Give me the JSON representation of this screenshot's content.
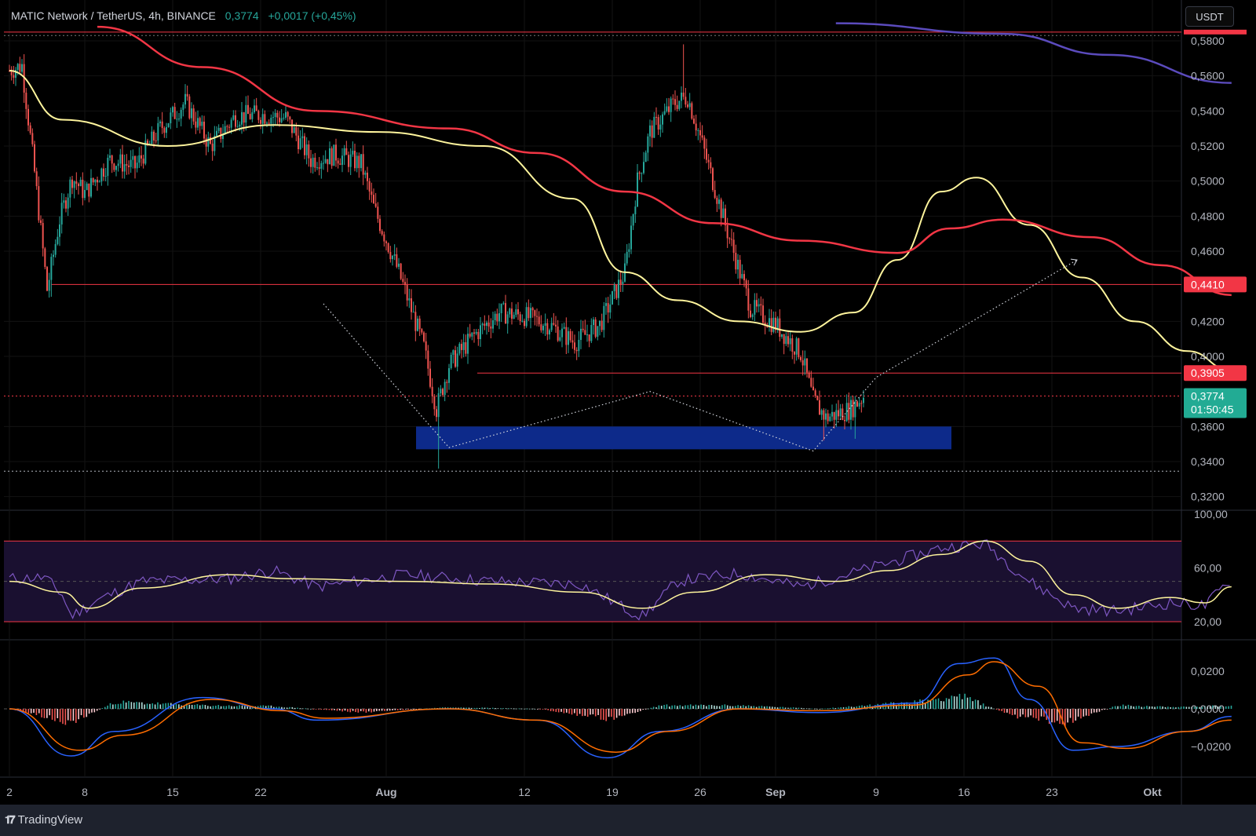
{
  "header": {
    "symbol": "MATIC Network / TetherUS, 4h, BINANCE",
    "price": "0,3774",
    "change": "+0,0017 (+0,45%)"
  },
  "currency_button": "USDT",
  "price_labels": [
    "0,5800",
    "0,5600",
    "0,5400",
    "0,5200",
    "0,5000",
    "0,4800",
    "0,4600",
    "0,4200",
    "0,4000",
    "0,3600",
    "0,3400",
    "0,3200"
  ],
  "level_tags": [
    {
      "text": "0,4410",
      "color": "#f23645"
    },
    {
      "text": "0,3905",
      "color": "#f23645"
    }
  ],
  "current_tag": {
    "price": "0,3774",
    "countdown": "01:50:45",
    "color": "#22ab94"
  },
  "rsi_labels": [
    "100,00",
    "60,00",
    "20,00"
  ],
  "macd_labels": [
    "0,0200",
    "0,0000",
    "−0,0200"
  ],
  "time_labels": [
    "2",
    "8",
    "15",
    "22",
    "Aug",
    "12",
    "19",
    "26",
    "Sep",
    "9",
    "16",
    "23",
    "Okt"
  ],
  "branding": "TradingView",
  "chart_data": [
    {
      "type": "candlestick",
      "title": "MATIC Network / TetherUS, 4h, BINANCE",
      "x_axis": "date (2024-07-02 to 2024-10-01)",
      "ylim": [
        0.312,
        0.588
      ],
      "key_points": [
        {
          "date": "07-02",
          "close": 0.563
        },
        {
          "date": "07-03",
          "close": 0.566
        },
        {
          "date": "07-04",
          "close": 0.505
        },
        {
          "date": "07-05",
          "close": 0.438
        },
        {
          "date": "07-06",
          "close": 0.478
        },
        {
          "date": "07-07",
          "close": 0.502
        },
        {
          "date": "07-08",
          "close": 0.493
        },
        {
          "date": "07-10",
          "close": 0.512
        },
        {
          "date": "07-12",
          "close": 0.508
        },
        {
          "date": "07-14",
          "close": 0.53
        },
        {
          "date": "07-16",
          "close": 0.545
        },
        {
          "date": "07-18",
          "close": 0.52
        },
        {
          "date": "07-20",
          "close": 0.537
        },
        {
          "date": "07-22",
          "close": 0.538
        },
        {
          "date": "07-24",
          "close": 0.536
        },
        {
          "date": "07-26",
          "close": 0.512
        },
        {
          "date": "07-28",
          "close": 0.515
        },
        {
          "date": "07-30",
          "close": 0.51
        },
        {
          "date": "07-31",
          "close": 0.485
        },
        {
          "date": "08-02",
          "close": 0.448
        },
        {
          "date": "08-04",
          "close": 0.405
        },
        {
          "date": "08-05",
          "close": 0.37
        },
        {
          "date": "08-06",
          "close": 0.395
        },
        {
          "date": "08-08",
          "close": 0.412
        },
        {
          "date": "08-10",
          "close": 0.425
        },
        {
          "date": "08-12",
          "close": 0.423
        },
        {
          "date": "08-14",
          "close": 0.418
        },
        {
          "date": "08-16",
          "close": 0.408
        },
        {
          "date": "08-18",
          "close": 0.418
        },
        {
          "date": "08-20",
          "close": 0.448
        },
        {
          "date": "08-21",
          "close": 0.5
        },
        {
          "date": "08-22",
          "close": 0.528
        },
        {
          "date": "08-24",
          "close": 0.545
        },
        {
          "date": "08-25",
          "close": 0.548
        },
        {
          "date": "08-26",
          "close": 0.525
        },
        {
          "date": "08-28",
          "close": 0.475
        },
        {
          "date": "08-30",
          "close": 0.428
        },
        {
          "date": "09-01",
          "close": 0.418
        },
        {
          "date": "09-03",
          "close": 0.402
        },
        {
          "date": "09-04",
          "close": 0.375
        },
        {
          "date": "09-05",
          "close": 0.365
        },
        {
          "date": "09-07",
          "close": 0.37
        },
        {
          "date": "09-08",
          "close": 0.3774
        }
      ],
      "moving_averages": [
        {
          "color": "#fff59d",
          "key_points": [
            [
              0,
              0.563
            ],
            [
              0.6,
              0.535
            ],
            [
              1.8,
              0.52
            ],
            [
              3.0,
              0.532
            ],
            [
              4.2,
              0.528
            ],
            [
              5.4,
              0.52
            ],
            [
              6.4,
              0.49
            ],
            [
              7.0,
              0.448
            ],
            [
              7.6,
              0.432
            ],
            [
              8.3,
              0.42
            ],
            [
              9.0,
              0.414
            ],
            [
              9.6,
              0.425
            ],
            [
              10.1,
              0.455
            ],
            [
              10.6,
              0.494
            ],
            [
              11.0,
              0.502
            ],
            [
              11.6,
              0.475
            ],
            [
              12.2,
              0.445
            ],
            [
              12.8,
              0.42
            ],
            [
              13.4,
              0.403
            ],
            [
              13.9,
              0.392
            ]
          ]
        },
        {
          "color": "#f23645",
          "key_points": [
            [
              1.0,
              0.588
            ],
            [
              2.2,
              0.565
            ],
            [
              3.5,
              0.54
            ],
            [
              5.0,
              0.53
            ],
            [
              6.0,
              0.516
            ],
            [
              7.0,
              0.494
            ],
            [
              8.0,
              0.476
            ],
            [
              9.0,
              0.466
            ],
            [
              10.1,
              0.459
            ],
            [
              10.7,
              0.473
            ],
            [
              11.3,
              0.478
            ],
            [
              12.3,
              0.468
            ],
            [
              13.1,
              0.452
            ],
            [
              13.9,
              0.435
            ]
          ]
        },
        {
          "color": "#5b4bbd",
          "key_points": [
            [
              9.4,
              0.59
            ],
            [
              11.3,
              0.584
            ],
            [
              12.5,
              0.572
            ],
            [
              13.9,
              0.556
            ]
          ]
        }
      ],
      "horizontal_levels": [
        0.585,
        0.441,
        0.3905,
        0.3774,
        0.3345
      ],
      "support_zone": {
        "x_from": "08-03",
        "x_to": "09-14",
        "y_from": 0.347,
        "y_to": 0.36,
        "color": "#0d2a8a"
      },
      "pattern_lines": {
        "color": "#d1d4dc",
        "style": "dotted",
        "points": [
          [
            "07-27",
            0.43
          ],
          [
            "08-06",
            0.348
          ],
          [
            "08-22",
            0.38
          ],
          [
            "09-04",
            0.346
          ],
          [
            "09-09",
            0.388
          ],
          [
            "09-25",
            0.455
          ]
        ]
      }
    },
    {
      "type": "line",
      "title": "RSI",
      "ylim": [
        0,
        100
      ],
      "band": [
        20,
        80
      ],
      "midline": 50,
      "rsi_key_points": [
        [
          0,
          52
        ],
        [
          0.4,
          53
        ],
        [
          0.6,
          40
        ],
        [
          0.7,
          24
        ],
        [
          1.0,
          36
        ],
        [
          1.5,
          50
        ],
        [
          2.5,
          52
        ],
        [
          3.0,
          58
        ],
        [
          3.5,
          46
        ],
        [
          4.5,
          55
        ],
        [
          5.5,
          50
        ],
        [
          6.5,
          48
        ],
        [
          7.0,
          30
        ],
        [
          7.2,
          24
        ],
        [
          7.6,
          50
        ],
        [
          8.3,
          56
        ],
        [
          9.0,
          46
        ],
        [
          9.8,
          60
        ],
        [
          10.6,
          75
        ],
        [
          11.1,
          78
        ],
        [
          11.6,
          50
        ],
        [
          12.1,
          30
        ],
        [
          12.6,
          28
        ],
        [
          13.2,
          34
        ],
        [
          13.6,
          32
        ],
        [
          13.9,
          52
        ]
      ],
      "signal_key_points": [
        [
          0,
          50
        ],
        [
          0.6,
          42
        ],
        [
          0.9,
          30
        ],
        [
          1.5,
          45
        ],
        [
          2.5,
          55
        ],
        [
          3.2,
          52
        ],
        [
          4.5,
          50
        ],
        [
          5.5,
          48
        ],
        [
          6.5,
          42
        ],
        [
          7.2,
          30
        ],
        [
          7.8,
          42
        ],
        [
          8.6,
          55
        ],
        [
          9.4,
          50
        ],
        [
          10.0,
          58
        ],
        [
          10.6,
          70
        ],
        [
          11.1,
          80
        ],
        [
          11.6,
          65
        ],
        [
          12.1,
          40
        ],
        [
          12.6,
          30
        ],
        [
          13.2,
          38
        ],
        [
          13.6,
          34
        ],
        [
          13.9,
          46
        ]
      ]
    },
    {
      "type": "bar",
      "title": "MACD",
      "ylim": [
        -0.032,
        0.032
      ],
      "histogram_key_points": [
        [
          0,
          0
        ],
        [
          0.7,
          -0.008
        ],
        [
          1.2,
          0.004
        ],
        [
          2.2,
          0.002
        ],
        [
          3.0,
          0.0015
        ],
        [
          4.0,
          -0.002
        ],
        [
          5.0,
          0.001
        ],
        [
          6.0,
          0.0
        ],
        [
          6.8,
          -0.006
        ],
        [
          7.4,
          0.002
        ],
        [
          8.3,
          0.002
        ],
        [
          9.2,
          0.0
        ],
        [
          10.3,
          0.004
        ],
        [
          10.8,
          0.008
        ],
        [
          11.4,
          -0.004
        ],
        [
          12.0,
          -0.008
        ],
        [
          12.6,
          0.002
        ],
        [
          13.4,
          0.001
        ],
        [
          13.9,
          0.002
        ]
      ],
      "macd_key_points": [
        [
          0,
          0
        ],
        [
          0.7,
          -0.025
        ],
        [
          1.2,
          -0.012
        ],
        [
          2.2,
          0.006
        ],
        [
          3.0,
          0.0
        ],
        [
          3.5,
          -0.006
        ],
        [
          5.0,
          0.0
        ],
        [
          6.0,
          -0.006
        ],
        [
          6.8,
          -0.026
        ],
        [
          7.4,
          -0.012
        ],
        [
          8.3,
          0.0
        ],
        [
          9.2,
          -0.002
        ],
        [
          10.3,
          0.003
        ],
        [
          10.8,
          0.024
        ],
        [
          11.2,
          0.027
        ],
        [
          11.6,
          0.005
        ],
        [
          12.1,
          -0.022
        ],
        [
          12.6,
          -0.02
        ],
        [
          13.4,
          -0.012
        ],
        [
          13.9,
          -0.004
        ]
      ],
      "signal_key_points": [
        [
          0,
          0
        ],
        [
          0.8,
          -0.022
        ],
        [
          1.3,
          -0.014
        ],
        [
          2.3,
          0.005
        ],
        [
          3.1,
          -0.001
        ],
        [
          3.6,
          -0.005
        ],
        [
          5.0,
          0.0
        ],
        [
          6.0,
          -0.006
        ],
        [
          6.9,
          -0.023
        ],
        [
          7.5,
          -0.012
        ],
        [
          8.3,
          0.0
        ],
        [
          9.2,
          -0.001
        ],
        [
          10.3,
          0.002
        ],
        [
          10.9,
          0.018
        ],
        [
          11.2,
          0.025
        ],
        [
          11.7,
          0.012
        ],
        [
          12.2,
          -0.018
        ],
        [
          12.7,
          -0.021
        ],
        [
          13.4,
          -0.012
        ],
        [
          13.9,
          -0.006
        ]
      ]
    }
  ]
}
